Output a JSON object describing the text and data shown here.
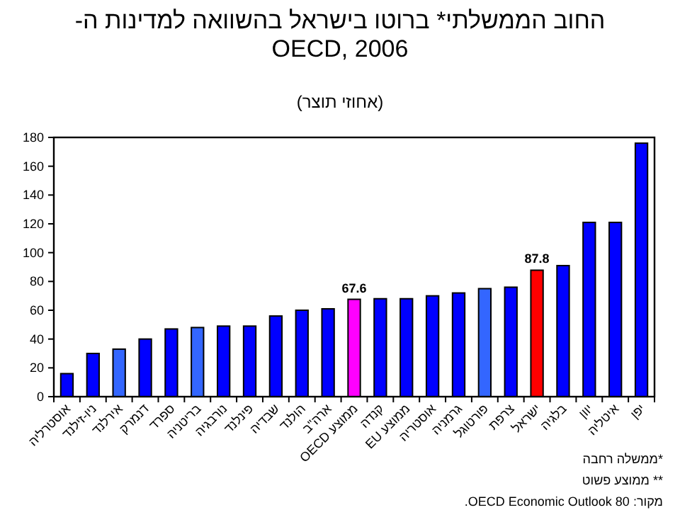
{
  "chart_data": {
    "type": "bar",
    "title": "החוב הממשלתי* ברוטו בישראל בהשוואה למדינות ה-OECD, 2006",
    "subtitle": "(אחוזי תוצר)",
    "categories": [
      "אוסטרליה",
      "ניו-זילנד",
      "אירלנד",
      "דנמרק",
      "ספרד",
      "בריטניה",
      "נורבגיה",
      "פינלנד",
      "שבדיה",
      "הולנד",
      "ארה\"ב",
      "ממוצע OECD",
      "קנדה",
      "ממוצע EU",
      "אוסטריה",
      "גרמניה",
      "פורטוגל",
      "צרפת",
      "ישראל",
      "בלגיה",
      "יוון",
      "איטליה",
      "יפן"
    ],
    "values": [
      16,
      30,
      33,
      40,
      47,
      48,
      49,
      49,
      56,
      60,
      61,
      67.6,
      68,
      68,
      70,
      72,
      75,
      76,
      87.8,
      91,
      121,
      121,
      176
    ],
    "colors": [
      "#0000ff",
      "#0000ff",
      "#3366ff",
      "#0000ff",
      "#0000ff",
      "#3366ff",
      "#0000ff",
      "#0000ff",
      "#0000ff",
      "#0000ff",
      "#0000ff",
      "#ff00ff",
      "#0000ff",
      "#0000ff",
      "#0000ff",
      "#0000ff",
      "#3366ff",
      "#0000ff",
      "#ff0000",
      "#0000ff",
      "#0000ff",
      "#0000ff",
      "#0000ff"
    ],
    "value_labels": [
      null,
      null,
      null,
      null,
      null,
      null,
      null,
      null,
      null,
      null,
      null,
      "67.6",
      null,
      null,
      null,
      null,
      null,
      null,
      "87.8",
      null,
      null,
      null,
      null
    ],
    "ylim": [
      0,
      180
    ],
    "yticks": [
      0,
      20,
      40,
      60,
      80,
      100,
      120,
      140,
      160,
      180
    ],
    "annotations": [
      "*ממשלה רחבה",
      "** ממוצע פשוט",
      "מקור: OECD Economic Outlook 80."
    ]
  }
}
